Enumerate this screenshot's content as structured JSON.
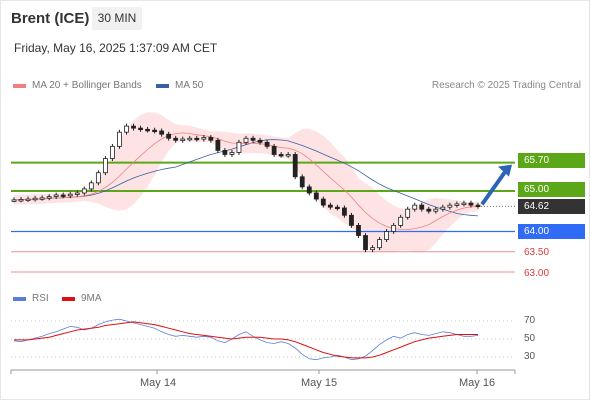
{
  "header": {
    "instrument": "Brent (ICE)",
    "timeframe": "30 MIN",
    "datetime": "Friday, May 16, 2025 1:37:09 AM CET",
    "credit": "Research © 2025 Trading Central"
  },
  "legend": {
    "ma20": "MA 20 + Bollinger Bands",
    "ma50": "MA 50",
    "ma20_color": "#f08080",
    "ma50_color": "#3a5fa5"
  },
  "levels": {
    "r2": "65.70",
    "r1": "65.00",
    "last": "64.62",
    "s1": "64.00",
    "s2": "63.50",
    "s3": "63.00"
  },
  "rsi_legend": {
    "rsi": "RSI",
    "ma9": "9MA",
    "rsi_color": "#5b7fd6",
    "ma9_color": "#dd1111"
  },
  "rsi_axis": [
    "70",
    "50",
    "30"
  ],
  "x_axis": [
    "May 14",
    "May 15",
    "May 16"
  ],
  "chart_data": [
    {
      "type": "line",
      "title": "Brent (ICE)",
      "subtitle": "30 MIN",
      "x_ticks": [
        "May 14",
        "May 15",
        "May 16"
      ],
      "series": [
        {
          "name": "MA 20 + Bollinger Bands"
        },
        {
          "name": "MA 50"
        }
      ],
      "price_close_approx": [
        64.78,
        64.79,
        64.8,
        64.82,
        64.83,
        64.86,
        64.9,
        64.88,
        64.92,
        64.95,
        65.05,
        65.2,
        65.45,
        65.8,
        66.1,
        66.45,
        66.6,
        66.55,
        66.52,
        66.5,
        66.48,
        66.4,
        66.3,
        66.25,
        66.28,
        66.3,
        66.28,
        66.32,
        66.25,
        66.0,
        65.9,
        65.95,
        66.2,
        66.3,
        66.25,
        66.2,
        66.1,
        65.9,
        65.88,
        65.9,
        65.35,
        65.1,
        64.95,
        64.8,
        64.65,
        64.6,
        64.58,
        64.4,
        64.15,
        63.9,
        63.55,
        63.6,
        63.8,
        64.0,
        64.15,
        64.35,
        64.55,
        64.65,
        64.55,
        64.5,
        64.55,
        64.6,
        64.65,
        64.68,
        64.7,
        64.65,
        64.62
      ],
      "levels": [
        {
          "label": "65.70",
          "value": 65.7,
          "kind": "resistance"
        },
        {
          "label": "65.00",
          "value": 65.0,
          "kind": "resistance"
        },
        {
          "label": "64.62",
          "value": 64.62,
          "kind": "last"
        },
        {
          "label": "64.00",
          "value": 64.0,
          "kind": "support"
        },
        {
          "label": "63.50",
          "value": 63.5,
          "kind": "support"
        },
        {
          "label": "63.00",
          "value": 63.0,
          "kind": "support"
        }
      ],
      "forecast_arrow": {
        "from": 64.62,
        "to": 65.7,
        "direction": "up"
      }
    },
    {
      "type": "line",
      "ylim": [
        20,
        80
      ],
      "y_ticks": [
        "70",
        "50",
        "30"
      ],
      "x_ticks": [
        "May 14",
        "May 15",
        "May 16"
      ],
      "series": [
        {
          "name": "RSI",
          "values": [
            48,
            47,
            49,
            51,
            53,
            56,
            58,
            61,
            64,
            63,
            60,
            62,
            66,
            69,
            71,
            72,
            70,
            68,
            66,
            64,
            62,
            58,
            55,
            53,
            54,
            53,
            52,
            53,
            52,
            48,
            46,
            50,
            55,
            58,
            53,
            49,
            46,
            45,
            47,
            45,
            40,
            33,
            28,
            27,
            29,
            30,
            32,
            30,
            27,
            28,
            31,
            37,
            44,
            49,
            53,
            51,
            55,
            57,
            55,
            54,
            56,
            58,
            57,
            55,
            53,
            53,
            54
          ]
        },
        {
          "name": "9MA",
          "values": [
            49,
            49,
            49,
            50,
            51,
            52,
            54,
            56,
            58,
            60,
            61,
            62,
            63,
            65,
            66,
            67,
            68,
            69,
            68,
            67,
            66,
            64,
            62,
            60,
            58,
            56,
            55,
            54,
            53,
            52,
            51,
            50,
            51,
            52,
            52,
            52,
            51,
            50,
            50,
            49,
            47,
            44,
            41,
            38,
            35,
            33,
            31,
            30,
            29,
            29,
            29,
            30,
            32,
            35,
            38,
            41,
            44,
            47,
            49,
            51,
            52,
            53,
            54,
            55,
            55,
            55,
            55
          ]
        }
      ]
    }
  ]
}
